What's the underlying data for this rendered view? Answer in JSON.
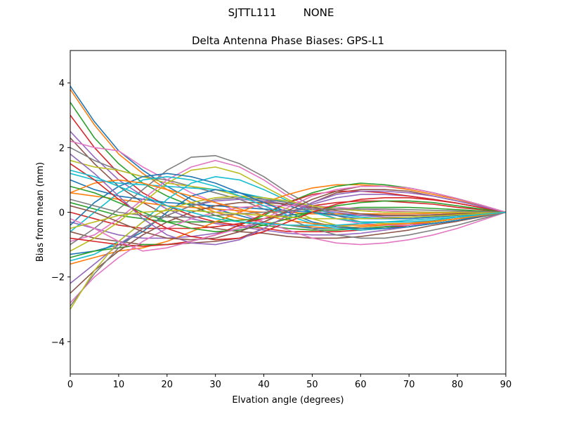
{
  "suptitle": "SJTTL111        NONE",
  "chart_data": {
    "type": "line",
    "title": "Delta Antenna Phase Biases: GPS-L1",
    "xlabel": "Elvation angle (degrees)",
    "ylabel": "Bias from mean (mm)",
    "xlim": [
      0,
      90
    ],
    "ylim": [
      -5,
      5
    ],
    "xticks": [
      0,
      10,
      20,
      30,
      40,
      50,
      60,
      70,
      80,
      90
    ],
    "yticks": [
      -4,
      -2,
      0,
      2,
      4
    ],
    "ytick_labels": [
      "−4",
      "−2",
      "0",
      "2",
      "4"
    ],
    "grid": false,
    "legend": "none",
    "x": [
      0,
      5,
      10,
      15,
      20,
      25,
      30,
      35,
      40,
      45,
      50,
      55,
      60,
      65,
      70,
      75,
      80,
      85,
      90
    ],
    "colors": [
      "#1f77b4",
      "#ff7f0e",
      "#2ca02c",
      "#d62728",
      "#9467bd",
      "#8c564b",
      "#e377c2",
      "#7f7f7f",
      "#bcbd22",
      "#17becf"
    ],
    "series": [
      {
        "values": [
          3.9,
          2.8,
          1.9,
          1.3,
          0.8,
          0.4,
          0.1,
          -0.1,
          -0.3,
          -0.4,
          -0.5,
          -0.5,
          -0.5,
          -0.45,
          -0.4,
          -0.3,
          -0.2,
          -0.1,
          0
        ]
      },
      {
        "values": [
          3.8,
          2.7,
          1.8,
          1.2,
          0.7,
          0.3,
          0.0,
          -0.2,
          -0.3,
          -0.4,
          -0.45,
          -0.5,
          -0.45,
          -0.4,
          -0.35,
          -0.25,
          -0.15,
          -0.08,
          0
        ]
      },
      {
        "values": [
          3.4,
          2.3,
          1.5,
          0.9,
          0.5,
          0.2,
          -0.1,
          -0.3,
          -0.4,
          -0.5,
          -0.55,
          -0.55,
          -0.5,
          -0.45,
          -0.4,
          -0.3,
          -0.2,
          -0.1,
          0
        ]
      },
      {
        "values": [
          3.0,
          2.0,
          1.2,
          0.6,
          0.2,
          -0.1,
          -0.3,
          -0.4,
          -0.5,
          -0.6,
          -0.6,
          -0.6,
          -0.55,
          -0.5,
          -0.4,
          -0.3,
          -0.2,
          -0.1,
          0
        ]
      },
      {
        "values": [
          2.5,
          1.7,
          1.0,
          0.5,
          0.1,
          -0.2,
          -0.35,
          -0.45,
          -0.55,
          -0.65,
          -0.7,
          -0.7,
          -0.65,
          -0.55,
          -0.45,
          -0.35,
          -0.25,
          -0.12,
          0
        ]
      },
      {
        "values": [
          2.3,
          1.5,
          0.8,
          0.3,
          -0.1,
          -0.35,
          -0.5,
          -0.6,
          -0.65,
          -0.75,
          -0.8,
          -0.8,
          -0.75,
          -0.65,
          -0.55,
          -0.4,
          -0.28,
          -0.14,
          0
        ]
      },
      {
        "values": [
          2.2,
          2.0,
          1.9,
          1.4,
          1.0,
          0.6,
          0.3,
          0.0,
          -0.3,
          -0.55,
          -0.8,
          -0.95,
          -1.0,
          -0.95,
          -0.85,
          -0.7,
          -0.5,
          -0.25,
          0
        ]
      },
      {
        "values": [
          2.0,
          1.6,
          1.3,
          1.1,
          1.0,
          0.8,
          0.6,
          0.4,
          0.1,
          -0.2,
          -0.5,
          -0.7,
          -0.8,
          -0.8,
          -0.7,
          -0.55,
          -0.4,
          -0.2,
          0
        ]
      },
      {
        "values": [
          1.6,
          1.4,
          1.3,
          1.1,
          0.9,
          0.8,
          0.7,
          0.5,
          0.3,
          0.1,
          -0.2,
          -0.4,
          -0.5,
          -0.5,
          -0.45,
          -0.35,
          -0.25,
          -0.12,
          0
        ]
      },
      {
        "values": [
          1.2,
          1.0,
          0.9,
          0.85,
          0.8,
          0.75,
          0.7,
          0.6,
          0.45,
          0.3,
          0.1,
          -0.05,
          -0.15,
          -0.2,
          -0.2,
          -0.15,
          -0.1,
          -0.05,
          0
        ]
      },
      {
        "values": [
          1.0,
          0.7,
          0.5,
          0.4,
          0.3,
          0.25,
          0.2,
          0.15,
          0.1,
          0.05,
          0.0,
          -0.05,
          -0.1,
          -0.1,
          -0.1,
          -0.08,
          -0.05,
          -0.02,
          0
        ]
      },
      {
        "values": [
          0.6,
          0.5,
          0.4,
          0.3,
          0.2,
          0.15,
          0.1,
          0.05,
          0.0,
          0.0,
          -0.05,
          -0.05,
          -0.05,
          -0.05,
          -0.05,
          -0.03,
          -0.02,
          -0.01,
          0
        ]
      },
      {
        "values": [
          0.3,
          0.1,
          -0.1,
          -0.2,
          -0.3,
          -0.3,
          -0.3,
          -0.25,
          -0.2,
          -0.1,
          0.0,
          0.1,
          0.15,
          0.15,
          0.15,
          0.12,
          0.08,
          0.04,
          0
        ]
      },
      {
        "values": [
          0.0,
          -0.2,
          -0.4,
          -0.5,
          -0.5,
          -0.5,
          -0.45,
          -0.35,
          -0.2,
          0.0,
          0.2,
          0.3,
          0.35,
          0.35,
          0.3,
          0.25,
          0.15,
          0.08,
          0
        ]
      },
      {
        "values": [
          -0.3,
          -0.5,
          -0.7,
          -0.8,
          -0.8,
          -0.75,
          -0.65,
          -0.5,
          -0.3,
          0.0,
          0.25,
          0.45,
          0.55,
          0.55,
          0.5,
          0.4,
          0.28,
          0.14,
          0
        ]
      },
      {
        "values": [
          -0.6,
          -0.8,
          -0.9,
          -1.0,
          -1.0,
          -0.95,
          -0.9,
          -0.8,
          -0.5,
          -0.1,
          0.3,
          0.6,
          0.7,
          0.7,
          0.65,
          0.5,
          0.35,
          0.18,
          0
        ]
      },
      {
        "values": [
          -0.9,
          -0.7,
          -0.2,
          0.4,
          1.0,
          1.4,
          1.6,
          1.4,
          1.0,
          0.5,
          0.1,
          -0.2,
          -0.35,
          -0.4,
          -0.4,
          -0.35,
          -0.25,
          -0.12,
          0
        ]
      },
      {
        "values": [
          -1.0,
          -0.5,
          0.1,
          0.7,
          1.3,
          1.7,
          1.75,
          1.5,
          1.1,
          0.6,
          0.2,
          -0.1,
          -0.3,
          -0.35,
          -0.35,
          -0.3,
          -0.2,
          -0.1,
          0
        ]
      },
      {
        "values": [
          -1.2,
          -0.8,
          -0.3,
          0.3,
          0.9,
          1.3,
          1.4,
          1.2,
          0.8,
          0.4,
          0.05,
          -0.2,
          -0.3,
          -0.35,
          -0.35,
          -0.3,
          -0.2,
          -0.1,
          0
        ]
      },
      {
        "values": [
          -1.5,
          -1.3,
          -0.9,
          -0.3,
          0.4,
          0.9,
          1.1,
          1.0,
          0.7,
          0.35,
          0.0,
          -0.2,
          -0.3,
          -0.3,
          -0.3,
          -0.25,
          -0.15,
          -0.08,
          0
        ]
      },
      {
        "values": [
          -1.3,
          -1.2,
          -1.0,
          -0.6,
          0.0,
          0.5,
          0.7,
          0.6,
          0.4,
          0.2,
          0.0,
          -0.1,
          -0.2,
          -0.2,
          -0.2,
          -0.15,
          -0.1,
          -0.05,
          0
        ]
      },
      {
        "values": [
          -1.6,
          -1.4,
          -1.2,
          -1.1,
          -0.9,
          -0.6,
          -0.3,
          0.0,
          0.3,
          0.55,
          0.75,
          0.85,
          0.85,
          0.8,
          0.7,
          0.55,
          0.4,
          0.2,
          0
        ]
      },
      {
        "values": [
          -1.4,
          -1.2,
          -1.1,
          -1.0,
          -1.0,
          -0.9,
          -0.7,
          -0.4,
          -0.1,
          0.3,
          0.6,
          0.8,
          0.9,
          0.85,
          0.75,
          0.6,
          0.42,
          0.22,
          0
        ]
      },
      {
        "values": [
          -0.8,
          -0.9,
          -1.0,
          -1.05,
          -1.0,
          -0.9,
          -0.7,
          -0.4,
          -0.05,
          0.3,
          0.55,
          0.65,
          0.65,
          0.6,
          0.5,
          0.4,
          0.28,
          0.14,
          0
        ]
      },
      {
        "values": [
          -2.2,
          -1.6,
          -1.0,
          -0.5,
          -0.1,
          0.2,
          0.35,
          0.4,
          0.35,
          0.25,
          0.1,
          0.0,
          -0.1,
          -0.15,
          -0.15,
          -0.12,
          -0.08,
          -0.04,
          0
        ]
      },
      {
        "values": [
          -2.5,
          -1.8,
          -1.2,
          -0.7,
          -0.3,
          0.0,
          0.2,
          0.3,
          0.3,
          0.25,
          0.15,
          0.05,
          -0.05,
          -0.1,
          -0.1,
          -0.08,
          -0.05,
          -0.02,
          0
        ]
      },
      {
        "values": [
          -2.8,
          -2.0,
          -1.4,
          -0.9,
          -0.5,
          -0.2,
          0.0,
          0.15,
          0.2,
          0.2,
          0.2,
          0.15,
          0.1,
          0.05,
          0.02,
          0.0,
          0.0,
          0.0,
          0
        ]
      },
      {
        "values": [
          -2.9,
          -1.9,
          -1.1,
          -0.5,
          -0.1,
          0.2,
          0.4,
          0.45,
          0.4,
          0.3,
          0.2,
          0.1,
          0.05,
          0.0,
          0.0,
          0.0,
          0.0,
          0.0,
          0
        ]
      },
      {
        "values": [
          -3.0,
          -1.8,
          -0.9,
          -0.3,
          0.1,
          0.3,
          0.45,
          0.5,
          0.45,
          0.35,
          0.2,
          0.1,
          0.05,
          0.0,
          0.0,
          0.0,
          0.0,
          0.0,
          0
        ]
      },
      {
        "values": [
          -0.6,
          0.0,
          0.6,
          1.0,
          1.1,
          1.0,
          0.8,
          0.5,
          0.2,
          -0.1,
          -0.35,
          -0.5,
          -0.55,
          -0.5,
          -0.45,
          -0.35,
          -0.25,
          -0.12,
          0
        ]
      },
      {
        "values": [
          -0.4,
          0.3,
          0.8,
          1.1,
          1.2,
          1.1,
          0.9,
          0.6,
          0.3,
          0.0,
          -0.3,
          -0.45,
          -0.5,
          -0.5,
          -0.45,
          -0.35,
          -0.25,
          -0.12,
          0
        ]
      },
      {
        "values": [
          0.6,
          0.9,
          1.0,
          0.9,
          0.7,
          0.5,
          0.3,
          0.1,
          -0.1,
          -0.25,
          -0.35,
          -0.4,
          -0.4,
          -0.38,
          -0.35,
          -0.28,
          -0.2,
          -0.1,
          0
        ]
      },
      {
        "values": [
          0.8,
          0.6,
          0.3,
          0.0,
          -0.3,
          -0.5,
          -0.6,
          -0.55,
          -0.4,
          -0.2,
          0.0,
          0.2,
          0.3,
          0.35,
          0.35,
          0.3,
          0.2,
          0.1,
          0
        ]
      },
      {
        "values": [
          1.5,
          1.0,
          0.4,
          -0.1,
          -0.5,
          -0.75,
          -0.85,
          -0.8,
          -0.6,
          -0.3,
          0.0,
          0.25,
          0.4,
          0.45,
          0.45,
          0.38,
          0.28,
          0.14,
          0
        ]
      },
      {
        "values": [
          1.8,
          1.2,
          0.5,
          -0.2,
          -0.7,
          -0.95,
          -1.0,
          -0.85,
          -0.5,
          -0.1,
          0.3,
          0.55,
          0.65,
          0.65,
          0.6,
          0.5,
          0.35,
          0.18,
          0
        ]
      },
      {
        "values": [
          0.2,
          0.0,
          -0.3,
          -0.6,
          -0.8,
          -0.85,
          -0.8,
          -0.6,
          -0.3,
          0.05,
          0.4,
          0.65,
          0.8,
          0.8,
          0.75,
          0.6,
          0.42,
          0.22,
          0
        ]
      },
      {
        "values": [
          -0.2,
          -0.5,
          -0.9,
          -1.2,
          -1.1,
          -0.9,
          -0.7,
          -0.5,
          -0.2,
          0.15,
          0.5,
          0.7,
          0.8,
          0.8,
          0.75,
          0.6,
          0.42,
          0.22,
          0
        ]
      },
      {
        "values": [
          0.4,
          0.2,
          0.0,
          -0.1,
          -0.15,
          -0.15,
          -0.1,
          -0.05,
          0.0,
          0.05,
          0.1,
          0.1,
          0.1,
          0.1,
          0.08,
          0.06,
          0.04,
          0.02,
          0
        ]
      },
      {
        "values": [
          -0.5,
          -0.3,
          -0.1,
          0.0,
          0.05,
          0.05,
          0.0,
          -0.05,
          -0.1,
          -0.15,
          -0.2,
          -0.2,
          -0.2,
          -0.18,
          -0.15,
          -0.12,
          -0.08,
          -0.04,
          0
        ]
      },
      {
        "values": [
          1.3,
          1.1,
          0.8,
          0.5,
          0.2,
          0.0,
          -0.2,
          -0.3,
          -0.35,
          -0.4,
          -0.4,
          -0.4,
          -0.35,
          -0.3,
          -0.25,
          -0.2,
          -0.14,
          -0.07,
          0
        ]
      }
    ]
  }
}
